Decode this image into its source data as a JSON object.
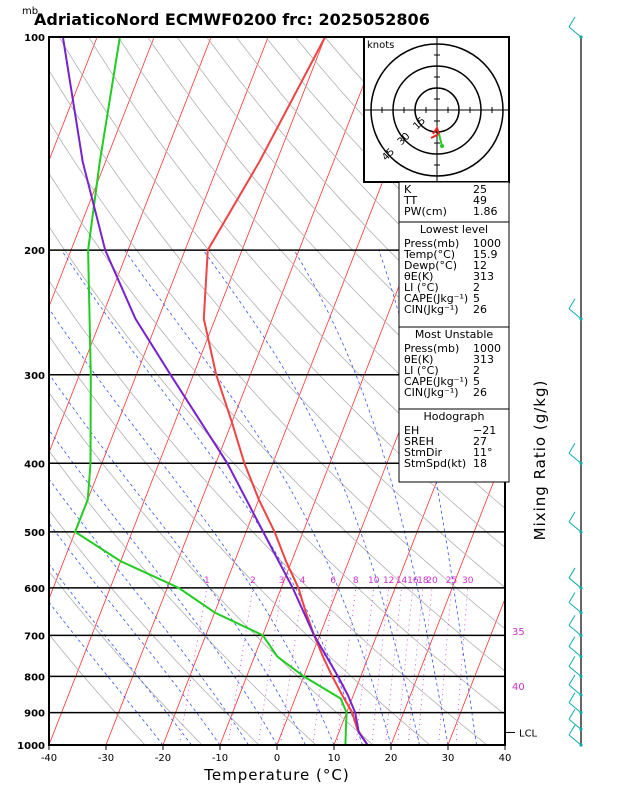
{
  "title": "AdriaticoNord ECMWF0200 frc: 2025052806",
  "pressure_unit": "mb",
  "colors": {
    "temperature": "#ee4444",
    "dewpoint": "#22cc22",
    "parcel": "#7722cc",
    "isotherm": "#ff3333",
    "dry_adiabat": "#b0b0b0",
    "moist_adiabat": "#3355ee",
    "mixing_ratio": "#cc33cc",
    "wind": "#11aaaa"
  },
  "chart_data": {
    "type": "line",
    "title": "AdriaticoNord ECMWF0200 frc: 2025052806",
    "xlabel": "Temperature (°C)",
    "ylabel": "mb",
    "right_label": "Mixing Ratio (g/kg)",
    "xlim": [
      -40,
      40
    ],
    "ylim": [
      1000,
      100
    ],
    "y_scale": "log",
    "x_ticks": [
      "-40",
      "-30",
      "-20",
      "-10",
      "0",
      "10",
      "20",
      "30",
      "40"
    ],
    "y_ticks": [
      "100",
      "200",
      "300",
      "400",
      "500",
      "600",
      "700",
      "800",
      "900",
      "1000"
    ],
    "mixing_ratio_labels": [
      "1",
      "2",
      "3",
      "4",
      "6",
      "8",
      "10",
      "12",
      "14",
      "16",
      "18",
      "20",
      "25",
      "30"
    ],
    "skew_labels": [
      "35",
      "40"
    ],
    "lcl_label": "LCL",
    "lcl_pressure": 960,
    "series": [
      {
        "name": "Temperature",
        "points": [
          [
            1000,
            15.9
          ],
          [
            950,
            13
          ],
          [
            900,
            11
          ],
          [
            850,
            8
          ],
          [
            800,
            5
          ],
          [
            750,
            2
          ],
          [
            700,
            -1
          ],
          [
            650,
            -4
          ],
          [
            600,
            -7
          ],
          [
            550,
            -11
          ],
          [
            500,
            -15
          ],
          [
            450,
            -20
          ],
          [
            400,
            -25
          ],
          [
            350,
            -30
          ],
          [
            300,
            -36
          ],
          [
            250,
            -42
          ],
          [
            200,
            -46
          ],
          [
            150,
            -43
          ],
          [
            100,
            -40
          ]
        ]
      },
      {
        "name": "Dewpoint",
        "points": [
          [
            1000,
            12
          ],
          [
            950,
            11
          ],
          [
            900,
            10
          ],
          [
            860,
            8
          ],
          [
            800,
            0
          ],
          [
            750,
            -6
          ],
          [
            700,
            -10
          ],
          [
            650,
            -20
          ],
          [
            600,
            -28
          ],
          [
            550,
            -40
          ],
          [
            500,
            -50
          ],
          [
            450,
            -50
          ],
          [
            400,
            -52
          ],
          [
            300,
            -58
          ],
          [
            200,
            -67
          ],
          [
            150,
            -71
          ],
          [
            100,
            -76
          ]
        ]
      },
      {
        "name": "Parcel",
        "points": [
          [
            1000,
            15.9
          ],
          [
            960,
            13.5
          ],
          [
            900,
            11.5
          ],
          [
            850,
            9
          ],
          [
            800,
            6
          ],
          [
            700,
            -1
          ],
          [
            600,
            -8
          ],
          [
            500,
            -17
          ],
          [
            400,
            -28
          ],
          [
            300,
            -44
          ],
          [
            250,
            -54
          ],
          [
            200,
            -64
          ],
          [
            150,
            -74
          ],
          [
            100,
            -86
          ]
        ]
      }
    ],
    "isotherms_c": [
      -110,
      -100,
      -90,
      -80,
      -70,
      -60,
      -50,
      -40,
      -30,
      -20,
      -10,
      0,
      10,
      20,
      30,
      40
    ],
    "dry_adiabats_theta_k": [
      250,
      260,
      270,
      280,
      290,
      300,
      310,
      320,
      330,
      340,
      350,
      360,
      370,
      380,
      390,
      400,
      410,
      420,
      430,
      440,
      450
    ],
    "moist_adiabats_c": [
      -20,
      -15,
      -10,
      -5,
      0,
      5,
      10,
      15,
      20,
      25,
      30,
      35
    ],
    "mixing_ratios_gkg": [
      1,
      2,
      3,
      4,
      6,
      8,
      10,
      12,
      14,
      16,
      18,
      20,
      25,
      30
    ],
    "wind_pressures": [
      1000,
      950,
      900,
      850,
      800,
      750,
      700,
      650,
      600,
      500,
      400,
      250,
      100
    ]
  },
  "hodograph": {
    "label": "knots",
    "rings": [
      "15",
      "30",
      "45"
    ]
  },
  "indices": [
    {
      "label": "K",
      "value": "25"
    },
    {
      "label": "TT",
      "value": "49"
    },
    {
      "label": "PW(cm)",
      "value": "1.86"
    }
  ],
  "lowest_level": {
    "heading": "Lowest level",
    "rows": [
      {
        "label": "Press(mb)",
        "value": "1000"
      },
      {
        "label": "Temp(°C)",
        "value": "15.9"
      },
      {
        "label": "Dewp(°C)",
        "value": "12"
      },
      {
        "label": "θE(K)",
        "value": "313"
      },
      {
        "label": "LI (°C)",
        "value": "2"
      },
      {
        "label": "CAPE(Jkg⁻¹)",
        "value": "5"
      },
      {
        "label": "CIN(Jkg⁻¹)",
        "value": "26"
      }
    ]
  },
  "most_unstable": {
    "heading": "Most Unstable",
    "rows": [
      {
        "label": "Press(mb)",
        "value": "1000"
      },
      {
        "label": "θE(K)",
        "value": "313"
      },
      {
        "label": "LI (°C)",
        "value": "2"
      },
      {
        "label": "CAPE(Jkg⁻¹)",
        "value": "5"
      },
      {
        "label": "CIN(Jkg⁻¹)",
        "value": "26"
      }
    ]
  },
  "hodograph_params": {
    "heading": "Hodograph",
    "rows": [
      {
        "label": "EH",
        "value": "−21"
      },
      {
        "label": "SREH",
        "value": "27"
      },
      {
        "label": "StmDir",
        "value": "11°"
      },
      {
        "label": "StmSpd(kt)",
        "value": "18"
      }
    ]
  }
}
